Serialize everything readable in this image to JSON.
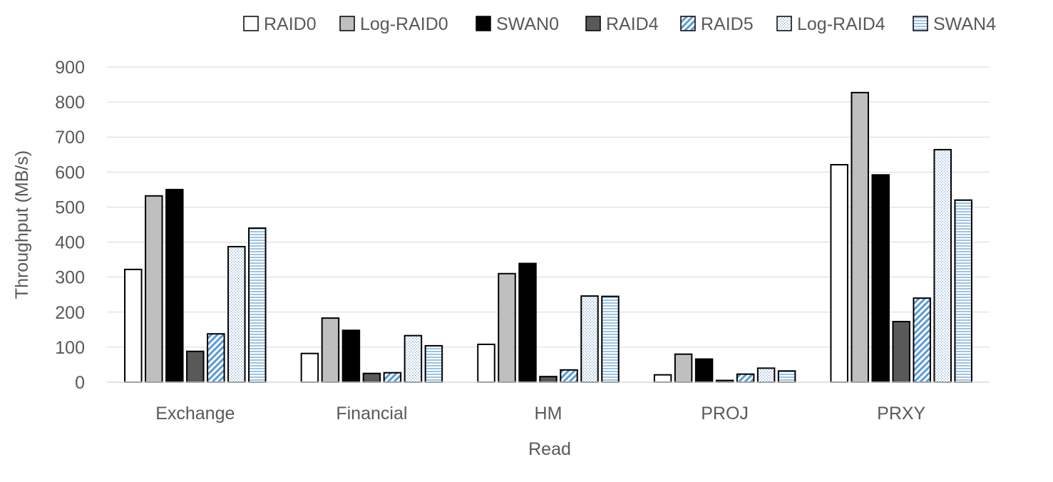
{
  "chart_data": {
    "type": "bar",
    "title": "",
    "xlabel": "Read",
    "ylabel": "Throughput (MB/s)",
    "ylim": [
      0,
      900
    ],
    "yticks": [
      0,
      100,
      200,
      300,
      400,
      500,
      600,
      700,
      800,
      900
    ],
    "grid": true,
    "legend_position": "top",
    "categories": [
      "Exchange",
      "Financial",
      "HM",
      "PROJ",
      "PRXY"
    ],
    "series": [
      {
        "name": "RAID0",
        "pattern": "solid",
        "fill": "#ffffff",
        "stroke": "#000000",
        "values": [
          322,
          82,
          108,
          21,
          621
        ]
      },
      {
        "name": "Log-RAID0",
        "pattern": "solid",
        "fill": "#bfbfbf",
        "stroke": "#000000",
        "values": [
          532,
          183,
          310,
          80,
          827
        ]
      },
      {
        "name": "SWAN0",
        "pattern": "solid",
        "fill": "#000000",
        "stroke": "#000000",
        "values": [
          550,
          148,
          339,
          66,
          592
        ]
      },
      {
        "name": "RAID4",
        "pattern": "solid",
        "fill": "#595959",
        "stroke": "#000000",
        "values": [
          88,
          25,
          16,
          5,
          173
        ]
      },
      {
        "name": "RAID5",
        "pattern": "diagonal",
        "fill": "#5b9bd5",
        "stroke": "#000000",
        "values": [
          138,
          27,
          35,
          23,
          240
        ]
      },
      {
        "name": "Log-RAID4",
        "pattern": "dots",
        "fill": "#9dc3e6",
        "stroke": "#000000",
        "values": [
          387,
          133,
          246,
          40,
          664
        ]
      },
      {
        "name": "SWAN4",
        "pattern": "horizontal",
        "fill": "#9dc3e6",
        "stroke": "#000000",
        "values": [
          440,
          104,
          245,
          32,
          520
        ]
      }
    ]
  }
}
